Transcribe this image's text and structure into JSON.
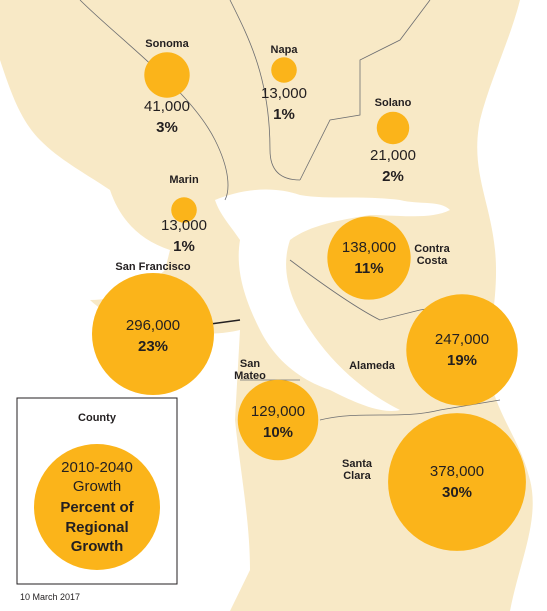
{
  "map": {
    "counties": [
      {
        "name": "Sonoma",
        "growth": 41000,
        "growth_label": "41,000",
        "share": 3,
        "share_label": "3%"
      },
      {
        "name": "Napa",
        "growth": 13000,
        "growth_label": "13,000",
        "share": 1,
        "share_label": "1%"
      },
      {
        "name": "Solano",
        "growth": 21000,
        "growth_label": "21,000",
        "share": 2,
        "share_label": "2%"
      },
      {
        "name": "Marin",
        "growth": 13000,
        "growth_label": "13,000",
        "share": 1,
        "share_label": "1%"
      },
      {
        "name": "Contra Costa",
        "growth": 138000,
        "growth_label": "138,000",
        "share": 11,
        "share_label": "11%"
      },
      {
        "name": "San Francisco",
        "growth": 296000,
        "growth_label": "296,000",
        "share": 23,
        "share_label": "23%"
      },
      {
        "name": "San Mateo",
        "growth": 129000,
        "growth_label": "129,000",
        "share": 10,
        "share_label": "10%"
      },
      {
        "name": "Alameda",
        "growth": 247000,
        "growth_label": "247,000",
        "share": 19,
        "share_label": "19%"
      },
      {
        "name": "Santa Clara",
        "growth": 378000,
        "growth_label": "378,000",
        "share": 30,
        "share_label": "30%"
      }
    ],
    "legend": {
      "title": "County",
      "line1": "2010-2040",
      "line2": "Growth",
      "line3": "Percent of Regional Growth"
    },
    "date": "10 March 2017"
  }
}
